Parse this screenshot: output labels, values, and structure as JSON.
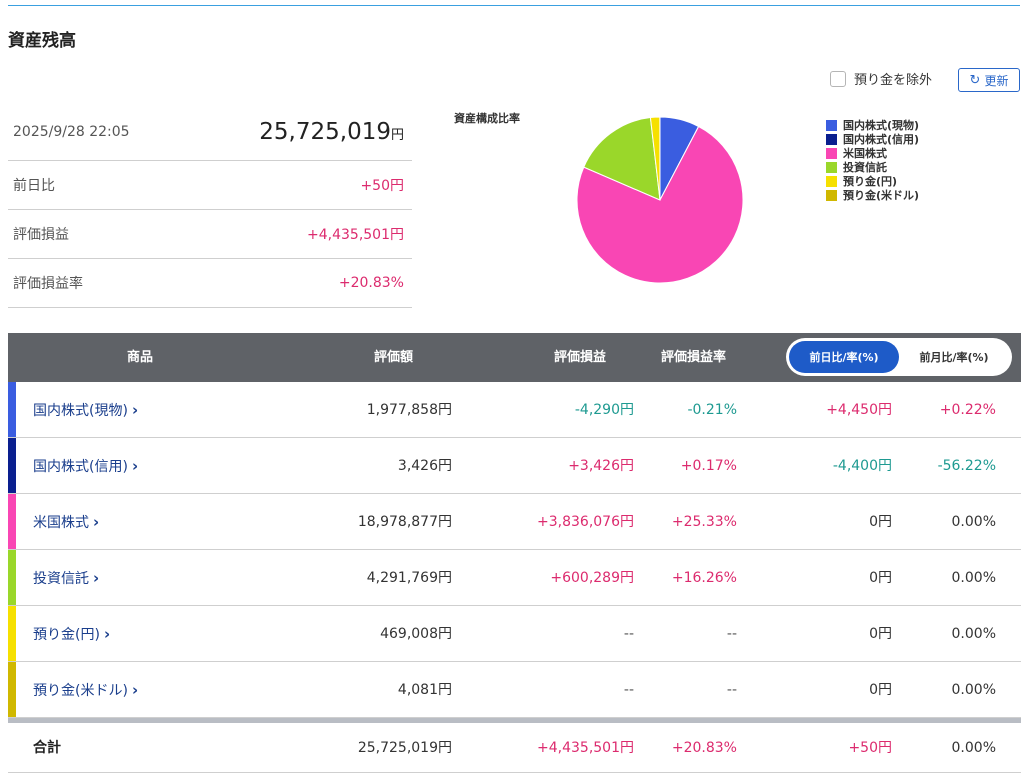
{
  "page": {
    "title": "資産残高"
  },
  "controls": {
    "exclude_deposit_label": "預り金を除外",
    "refresh_label": "更新",
    "refresh_icon": "refresh-icon"
  },
  "summary": {
    "datetime": "2025/9/28 22:05",
    "total_value": "25,725,019",
    "unit": "円",
    "rows": [
      {
        "label": "前日比",
        "value": "+50円"
      },
      {
        "label": "評価損益",
        "value": "+4,435,501円"
      },
      {
        "label": "評価損益率",
        "value": "+20.83%"
      }
    ]
  },
  "chart_data": {
    "type": "pie",
    "title": "資産構成比率",
    "legend_position": "right",
    "slices": [
      {
        "label": "国内株式(現物)",
        "value": 1977858,
        "color": "#3a5de0"
      },
      {
        "label": "国内株式(信用)",
        "value": 3426,
        "color": "#0a1f8f"
      },
      {
        "label": "米国株式",
        "value": 18978877,
        "color": "#f946b4"
      },
      {
        "label": "投資信託",
        "value": 4291769,
        "color": "#9ad72a"
      },
      {
        "label": "預り金(円)",
        "value": 469008,
        "color": "#f6e000"
      },
      {
        "label": "預り金(米ドル)",
        "value": 4081,
        "color": "#d0b800"
      }
    ]
  },
  "table": {
    "headers": {
      "product": "商品",
      "valuation": "評価額",
      "pl": "評価損益",
      "pl_rate": "評価損益率"
    },
    "toggle": {
      "active": "前日比/率(%)",
      "inactive": "前月比/率(%)"
    },
    "rows": [
      {
        "name": "国内株式(現物)",
        "color": "#3a5de0",
        "valuation": "1,977,858円",
        "pl": "-4,290円",
        "pl_rate": "-0.21%",
        "change": "+4,450円",
        "change_rate": "+0.22%"
      },
      {
        "name": "国内株式(信用)",
        "color": "#0a1f8f",
        "valuation": "3,426円",
        "pl": "+3,426円",
        "pl_rate": "+0.17%",
        "change": "-4,400円",
        "change_rate": "-56.22%"
      },
      {
        "name": "米国株式",
        "color": "#f946b4",
        "valuation": "18,978,877円",
        "pl": "+3,836,076円",
        "pl_rate": "+25.33%",
        "change": "0円",
        "change_rate": "0.00%"
      },
      {
        "name": "投資信託",
        "color": "#9ad72a",
        "valuation": "4,291,769円",
        "pl": "+600,289円",
        "pl_rate": "+16.26%",
        "change": "0円",
        "change_rate": "0.00%"
      },
      {
        "name": "預り金(円)",
        "color": "#f6e000",
        "valuation": "469,008円",
        "pl": "--",
        "pl_rate": "--",
        "change": "0円",
        "change_rate": "0.00%"
      },
      {
        "name": "預り金(米ドル)",
        "color": "#d0b800",
        "valuation": "4,081円",
        "pl": "--",
        "pl_rate": "--",
        "change": "0円",
        "change_rate": "0.00%"
      }
    ],
    "total": {
      "label": "合計",
      "valuation": "25,725,019円",
      "pl": "+4,435,501円",
      "pl_rate": "+20.83%",
      "change": "+50円",
      "change_rate": "0.00%"
    }
  }
}
